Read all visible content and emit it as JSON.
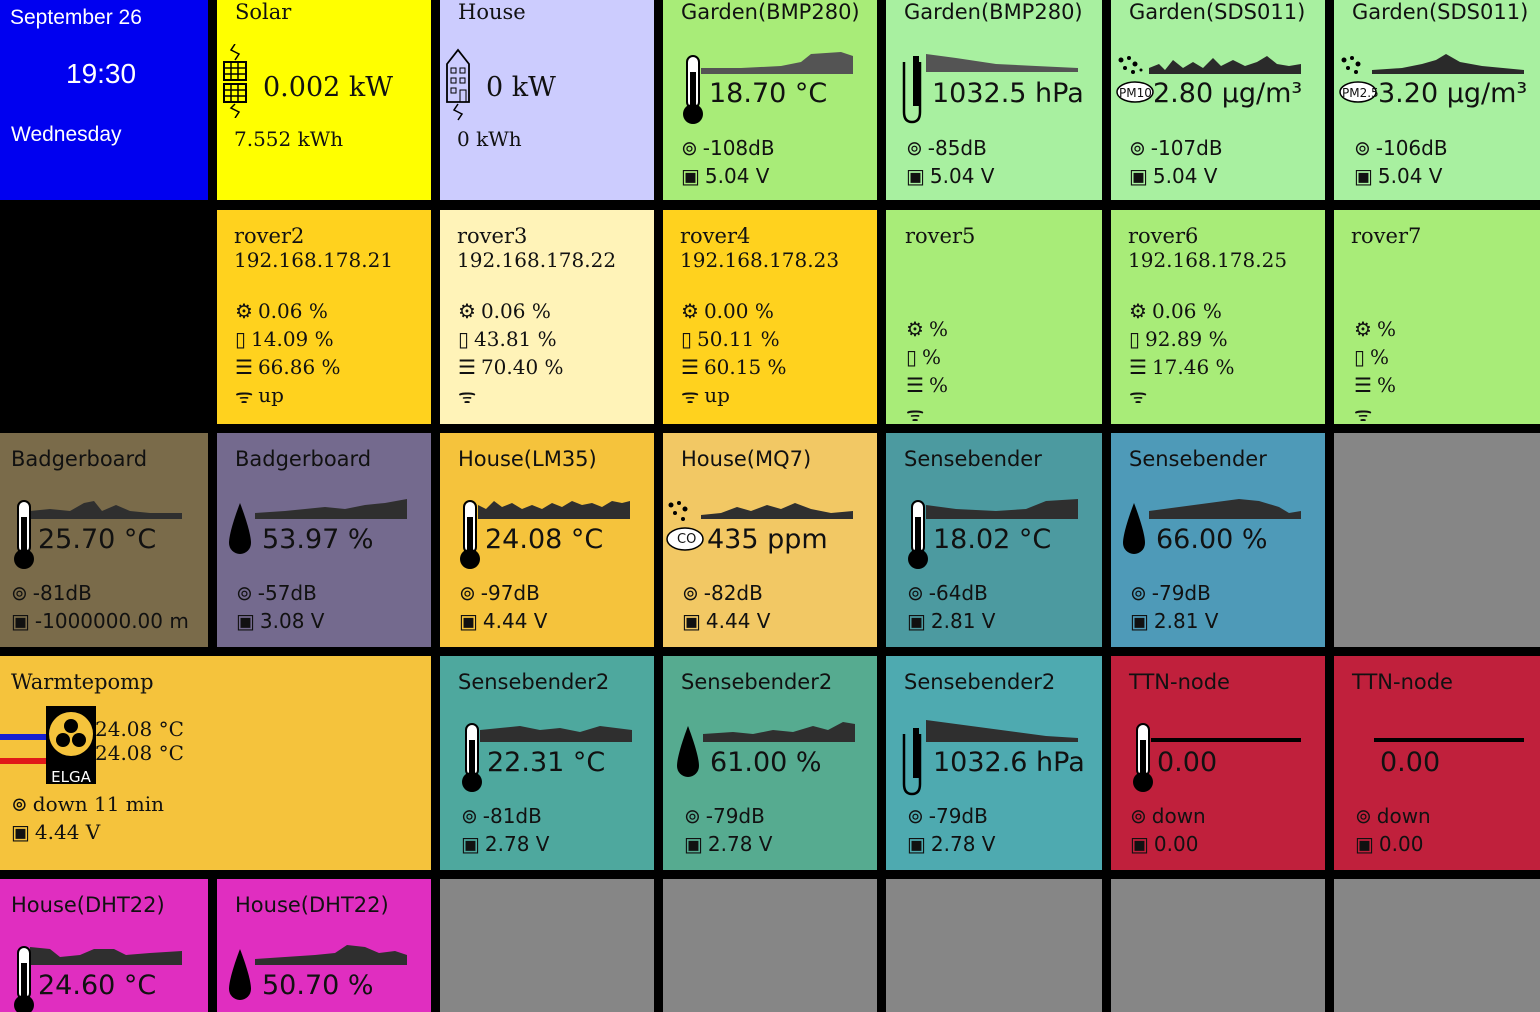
{
  "clock": {
    "date": "September 26",
    "time": "19:30",
    "day": "Wednesday"
  },
  "solar": {
    "title": "Solar",
    "power": "0.002 kW",
    "energy": "7.552 kWh"
  },
  "house_power": {
    "title": "House",
    "power": "0 kW",
    "energy": "0 kWh"
  },
  "garden_bmp_temp": {
    "title": "Garden(BMP280)",
    "value": "18.70 °C",
    "rssi": "-108dB",
    "battery": "5.04 V"
  },
  "garden_bmp_pressure": {
    "title": "Garden(BMP280)",
    "value": "1032.5 hPa",
    "rssi": "-85dB",
    "battery": "5.04 V"
  },
  "garden_sds_pm10": {
    "title": "Garden(SDS011)",
    "pm": "PM10",
    "value": "2.80 µg/m³",
    "rssi": "-107dB",
    "battery": "5.04 V"
  },
  "garden_sds_pm25": {
    "title": "Garden(SDS011)",
    "pm": "PM2.5",
    "value": "3.20 µg/m³",
    "rssi": "-106dB",
    "battery": "5.04 V"
  },
  "rovers": [
    {
      "name": "rover2",
      "ip": "192.168.178.21",
      "cpu": "0.06 %",
      "mem": "14.09 %",
      "disk": "66.86 %",
      "wifi": "up"
    },
    {
      "name": "rover3",
      "ip": "192.168.178.22",
      "cpu": "0.06 %",
      "mem": "43.81 %",
      "disk": "70.40 %",
      "wifi": ""
    },
    {
      "name": "rover4",
      "ip": "192.168.178.23",
      "cpu": "0.00 %",
      "mem": "50.11 %",
      "disk": "60.15 %",
      "wifi": "up"
    },
    {
      "name": "rover5",
      "ip": "",
      "cpu": "%",
      "mem": "%",
      "disk": "%",
      "wifi": ""
    },
    {
      "name": "rover6",
      "ip": "192.168.178.25",
      "cpu": "0.06 %",
      "mem": "92.89 %",
      "disk": "17.46 %",
      "wifi": ""
    },
    {
      "name": "rover7",
      "ip": "",
      "cpu": "%",
      "mem": "%",
      "disk": "%",
      "wifi": ""
    }
  ],
  "badger_temp": {
    "title": "Badgerboard",
    "value": "25.70 °C",
    "rssi": "-81dB",
    "battery": "-1000000.00 m"
  },
  "badger_hum": {
    "title": "Badgerboard",
    "value": "53.97 %",
    "rssi": "-57dB",
    "battery": "3.08 V"
  },
  "house_lm35": {
    "title": "House(LM35)",
    "value": "24.08 °C",
    "rssi": "-97dB",
    "battery": "4.44 V"
  },
  "house_mq7": {
    "title": "House(MQ7)",
    "gas": "CO",
    "value": "435 ppm",
    "rssi": "-82dB",
    "battery": "4.44 V"
  },
  "sense_temp": {
    "title": "Sensebender",
    "value": "18.02 °C",
    "rssi": "-64dB",
    "battery": "2.81 V"
  },
  "sense_hum": {
    "title": "Sensebender",
    "value": "66.00 %",
    "rssi": "-79dB",
    "battery": "2.81 V"
  },
  "heatpump": {
    "title": "Warmtepomp",
    "brand": "ELGA",
    "temp1": "24.08 °C",
    "temp2": "24.08 °C",
    "status": "down 11 min",
    "battery": "4.44 V"
  },
  "sense2_temp": {
    "title": "Sensebender2",
    "value": "22.31 °C",
    "rssi": "-81dB",
    "battery": "2.78 V"
  },
  "sense2_hum": {
    "title": "Sensebender2",
    "value": "61.00 %",
    "rssi": "-79dB",
    "battery": "2.78 V"
  },
  "sense2_pressure": {
    "title": "Sensebender2",
    "value": "1032.6 hPa",
    "rssi": "-79dB",
    "battery": "2.78 V"
  },
  "ttn1": {
    "title": "TTN-node",
    "value": "0.00",
    "status": "down",
    "battery": "0.00"
  },
  "ttn2": {
    "title": "TTN-node",
    "value": "0.00",
    "status": "down",
    "battery": "0.00"
  },
  "dht_temp": {
    "title": "House(DHT22)",
    "value": "24.60 °C"
  },
  "dht_hum": {
    "title": "House(DHT22)",
    "value": "50.70 %"
  },
  "colors": {
    "clock": "#0000f0",
    "solar": "#ffff00",
    "house": "#ccccfe",
    "garden_green": "#a8ec78",
    "garden_light": "#a8f0a0",
    "rover_orange": "#ffd21e",
    "rover_cream": "#fff3b8",
    "rover_green": "#a8ec78",
    "badger_olive": "#7a6b4a",
    "badger_purple": "#746a8e",
    "yellow_orange": "#f5c33c",
    "mq7": "#f2c864",
    "teal_dark": "#4c9aa0",
    "teal_blue": "#4e9ab8",
    "grey": "#868686",
    "teal_green": "#4ea89e",
    "teal_green2": "#56ab90",
    "teal_sense": "#4eaab0",
    "ttn_red": "#c0203c",
    "magenta": "#e02ec0"
  }
}
